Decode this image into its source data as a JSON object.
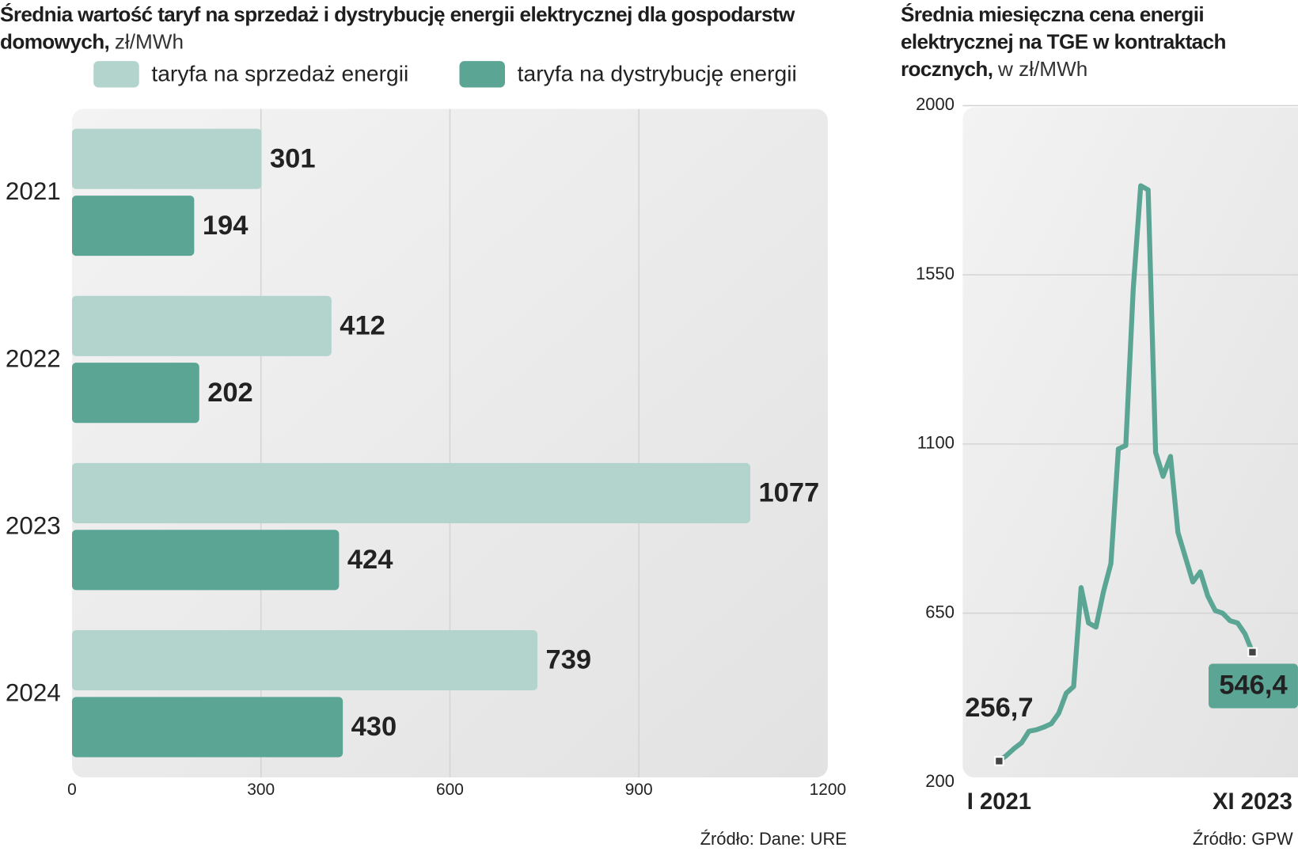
{
  "chart_data": [
    {
      "type": "bar",
      "orientation": "horizontal",
      "title": "Średnia wartość taryf na sprzedaż i dystrybucję energii elektrycznej dla gospodarstw domowych,",
      "unit": "zł/MWh",
      "categories": [
        "2021",
        "2022",
        "2023",
        "2024"
      ],
      "series": [
        {
          "name": "taryfa na sprzedaż energii",
          "color": "#b3d4cd",
          "values": [
            301,
            412,
            1077,
            739
          ]
        },
        {
          "name": "taryfa na dystrybucję energii",
          "color": "#5ba595",
          "values": [
            194,
            202,
            424,
            430
          ]
        }
      ],
      "xlim": [
        0,
        1200
      ],
      "xticks": [
        0,
        300,
        600,
        900,
        1200
      ],
      "grid": true,
      "source": "Źródło: Dane: URE"
    },
    {
      "type": "line",
      "title": "Średnia miesięczna cena energii elektrycznej na TGE w kontraktach rocznych,",
      "unit": "w zł/MWh",
      "categories": [
        "I 2021",
        null,
        null,
        null,
        null,
        null,
        null,
        null,
        null,
        null,
        null,
        null,
        null,
        null,
        null,
        null,
        null,
        null,
        null,
        null,
        null,
        null,
        null,
        null,
        null,
        null,
        null,
        null,
        null,
        null,
        null,
        null,
        null,
        null,
        "XI 2023"
      ],
      "series": [
        {
          "name": null,
          "color": "#5ba595",
          "values": [
            256.7,
            272,
            290,
            305,
            336,
            340,
            347,
            356,
            384,
            437,
            455,
            718,
            624,
            613,
            707,
            782,
            1087,
            1096,
            1513,
            1787,
            1776,
            1078,
            1014,
            1067,
            865,
            799,
            733,
            760,
            696,
            657,
            650,
            630,
            624,
            595,
            546.4
          ],
          "value_labels": [
            "256,7",
            null,
            null,
            null,
            null,
            null,
            null,
            null,
            null,
            null,
            null,
            null,
            null,
            null,
            null,
            null,
            null,
            null,
            null,
            null,
            null,
            null,
            null,
            null,
            null,
            null,
            null,
            null,
            null,
            null,
            null,
            null,
            null,
            null,
            "546,4"
          ]
        }
      ],
      "ylim": [
        200,
        2000
      ],
      "yticks": [
        200,
        650,
        1100,
        1550,
        2000
      ],
      "grid": true,
      "source": "Źródło: GPW"
    }
  ]
}
